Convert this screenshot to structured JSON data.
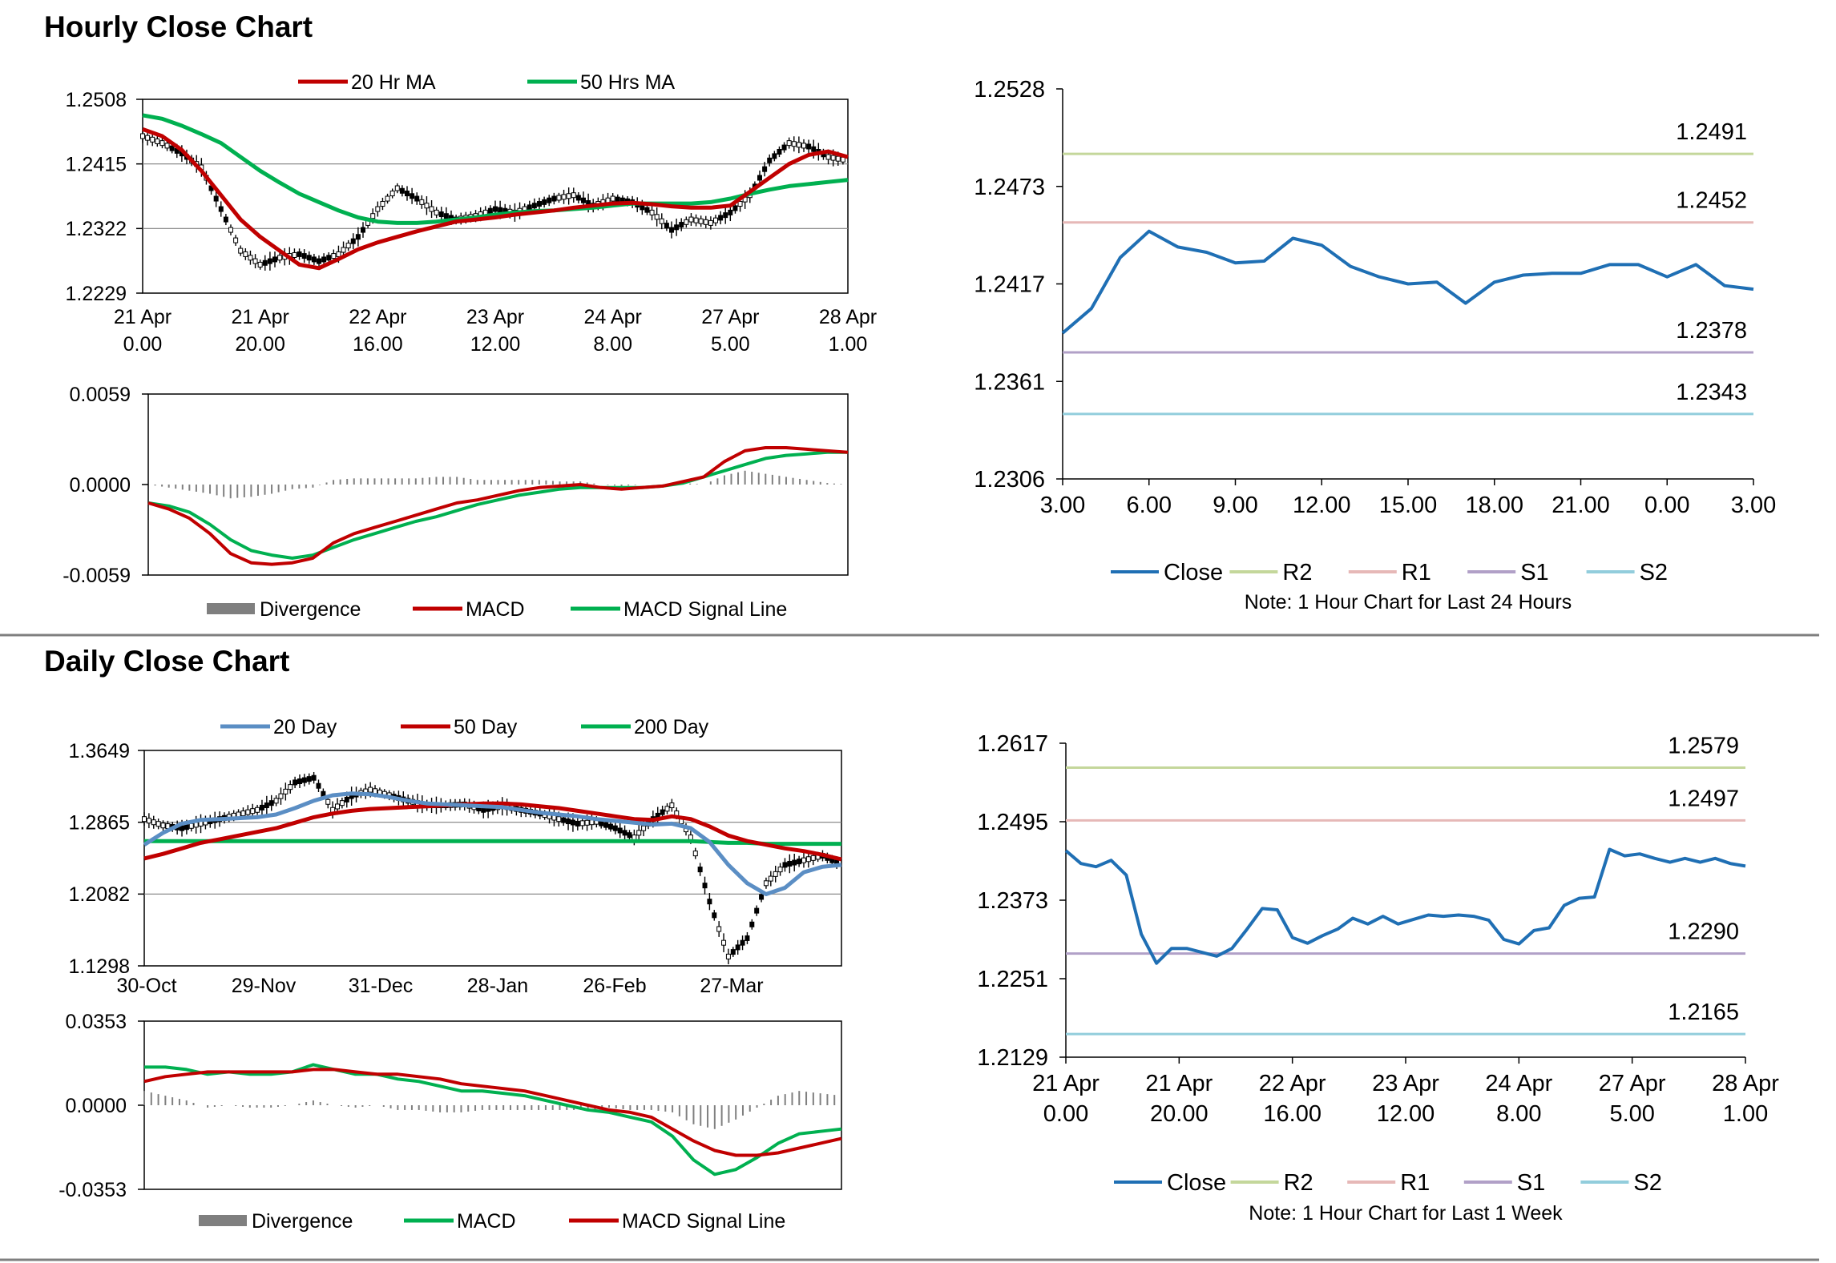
{
  "sections": {
    "hourly_title": "Hourly Close Chart",
    "daily_title": "Daily Close Chart"
  },
  "colors": {
    "ma20": "#c00000",
    "ma50": "#00b050",
    "close": "#1f6fb4",
    "r2": "#c4d79b",
    "r1": "#e6b8b7",
    "s1": "#b1a0c7",
    "s2": "#92cddc",
    "ma20day": "#5b8ec4",
    "divergence": "#7f7f7f"
  },
  "chart_data": [
    {
      "id": "hourly_price",
      "type": "line",
      "ylim": [
        1.2229,
        1.2508
      ],
      "y_ticks": [
        "1.2508",
        "1.2415",
        "1.2322",
        "1.2229"
      ],
      "x_ticks": [
        [
          "21 Apr",
          "0.00"
        ],
        [
          "21 Apr",
          "20.00"
        ],
        [
          "22 Apr",
          "16.00"
        ],
        [
          "23 Apr",
          "12.00"
        ],
        [
          "24 Apr",
          "8.00"
        ],
        [
          "27 Apr",
          "5.00"
        ],
        [
          "28 Apr",
          "1.00"
        ]
      ],
      "legend": [
        "20 Hr MA",
        "50 Hrs MA"
      ],
      "series": [
        {
          "name": "20 Hr MA",
          "values": [
            1.2465,
            1.2455,
            1.2435,
            1.2405,
            1.237,
            1.2335,
            1.231,
            1.229,
            1.227,
            1.2265,
            1.2278,
            1.2292,
            1.2302,
            1.231,
            1.2318,
            1.2325,
            1.2332,
            1.2335,
            1.2338,
            1.2342,
            1.2345,
            1.2348,
            1.2352,
            1.2355,
            1.2358,
            1.2359,
            1.2357,
            1.2354,
            1.2352,
            1.2352,
            1.2355,
            1.2375,
            1.2395,
            1.2415,
            1.2428,
            1.2433,
            1.2425
          ]
        },
        {
          "name": "50 Hrs MA",
          "values": [
            1.2485,
            1.248,
            1.247,
            1.2458,
            1.2445,
            1.2425,
            1.2405,
            1.2388,
            1.2372,
            1.236,
            1.2348,
            1.2338,
            1.2332,
            1.233,
            1.233,
            1.2332,
            1.2335,
            1.2338,
            1.2342,
            1.2345,
            1.2347,
            1.2348,
            1.235,
            1.2352,
            1.2355,
            1.2358,
            1.2358,
            1.2358,
            1.2358,
            1.236,
            1.2365,
            1.2372,
            1.2378,
            1.2383,
            1.2386,
            1.2389,
            1.2392
          ]
        },
        {
          "name": "Price",
          "values": [
            1.2455,
            1.2445,
            1.243,
            1.241,
            1.235,
            1.229,
            1.227,
            1.228,
            1.2285,
            1.2275,
            1.2285,
            1.231,
            1.235,
            1.238,
            1.2365,
            1.2345,
            1.2335,
            1.234,
            1.235,
            1.2345,
            1.2355,
            1.2365,
            1.237,
            1.2355,
            1.2365,
            1.236,
            1.2345,
            1.232,
            1.2335,
            1.233,
            1.2345,
            1.237,
            1.242,
            1.2445,
            1.244,
            1.2425,
            1.242
          ]
        }
      ]
    },
    {
      "id": "hourly_macd",
      "type": "line",
      "ylim": [
        -0.0059,
        0.0059
      ],
      "y_ticks": [
        "0.0059",
        "0.0000",
        "-0.0059"
      ],
      "legend": [
        "Divergence",
        "MACD",
        "MACD Signal Line"
      ],
      "series": [
        {
          "name": "MACD",
          "values": [
            -0.0012,
            -0.0016,
            -0.0022,
            -0.0032,
            -0.0045,
            -0.0051,
            -0.0052,
            -0.0051,
            -0.0048,
            -0.0038,
            -0.0032,
            -0.0028,
            -0.0024,
            -0.002,
            -0.0016,
            -0.0012,
            -0.001,
            -0.0007,
            -0.0004,
            -0.0002,
            -0.0001,
            0.0,
            -0.0002,
            -0.0003,
            -0.0002,
            -0.0001,
            0.0002,
            0.0005,
            0.0015,
            0.0022,
            0.0024,
            0.0024,
            0.0023,
            0.0022,
            0.0021
          ]
        },
        {
          "name": "MACD Signal Line",
          "values": [
            -0.0012,
            -0.0014,
            -0.0018,
            -0.0026,
            -0.0036,
            -0.0043,
            -0.0046,
            -0.0048,
            -0.0046,
            -0.0041,
            -0.0036,
            -0.0032,
            -0.0028,
            -0.0024,
            -0.0021,
            -0.0017,
            -0.0013,
            -0.001,
            -0.0007,
            -0.0005,
            -0.0003,
            -0.0002,
            -0.0002,
            -0.0002,
            -0.0002,
            -0.0001,
            0.0001,
            0.0005,
            0.0009,
            0.0013,
            0.0017,
            0.0019,
            0.002,
            0.0021,
            0.0021
          ]
        },
        {
          "name": "Divergence",
          "values": [
            0.0,
            -0.0002,
            -0.0004,
            -0.0006,
            -0.0009,
            -0.0008,
            -0.0006,
            -0.0003,
            -0.0002,
            0.0003,
            0.0004,
            0.0004,
            0.0004,
            0.0004,
            0.0005,
            0.0005,
            0.0003,
            0.0003,
            0.0003,
            0.0003,
            0.0002,
            0.0002,
            0.0,
            -0.0001,
            0.0,
            0.0,
            0.0001,
            0.0,
            0.0006,
            0.0009,
            0.0007,
            0.0005,
            0.0003,
            0.0001,
            0.0
          ]
        }
      ]
    },
    {
      "id": "hourly_24h",
      "type": "line",
      "ylim": [
        1.2306,
        1.2528
      ],
      "y_ticks": [
        "1.2528",
        "1.2473",
        "1.2417",
        "1.2361",
        "1.2306"
      ],
      "x_ticks": [
        "3.00",
        "6.00",
        "9.00",
        "12.00",
        "15.00",
        "18.00",
        "21.00",
        "0.00",
        "3.00"
      ],
      "legend": [
        "Close",
        "R2",
        "R1",
        "S1",
        "S2"
      ],
      "levels": {
        "R2": 1.2491,
        "R1": 1.2452,
        "S1": 1.2378,
        "S2": 1.2343
      },
      "level_labels": {
        "R2": "1.2491",
        "R1": "1.2452",
        "S1": "1.2378",
        "S2": "1.2343"
      },
      "close": [
        1.2389,
        1.2403,
        1.2432,
        1.2447,
        1.2438,
        1.2435,
        1.2429,
        1.243,
        1.2443,
        1.2439,
        1.2427,
        1.2421,
        1.2417,
        1.2418,
        1.2406,
        1.2418,
        1.2422,
        1.2423,
        1.2423,
        1.2428,
        1.2428,
        1.2421,
        1.2428,
        1.2416,
        1.2414
      ],
      "note": "Note: 1 Hour Chart for Last 24 Hours"
    },
    {
      "id": "daily_price",
      "type": "line",
      "ylim": [
        1.1298,
        1.3649
      ],
      "y_ticks": [
        "1.3649",
        "1.2865",
        "1.2082",
        "1.1298"
      ],
      "x_ticks": [
        "30-Oct",
        "29-Nov",
        "31-Dec",
        "28-Jan",
        "26-Feb",
        "27-Mar"
      ],
      "legend": [
        "20 Day",
        "50 Day",
        "200 Day"
      ],
      "series": [
        {
          "name": "20 Day",
          "values": [
            1.262,
            1.275,
            1.285,
            1.289,
            1.29,
            1.291,
            1.292,
            1.295,
            1.302,
            1.31,
            1.316,
            1.318,
            1.317,
            1.314,
            1.31,
            1.307,
            1.306,
            1.305,
            1.304,
            1.303,
            1.3,
            1.297,
            1.295,
            1.293,
            1.29,
            1.288,
            1.286,
            1.284,
            1.285,
            1.28,
            1.265,
            1.24,
            1.22,
            1.208,
            1.215,
            1.232,
            1.238,
            1.24
          ]
        },
        {
          "name": "50 Day",
          "values": [
            1.247,
            1.252,
            1.258,
            1.264,
            1.268,
            1.272,
            1.276,
            1.28,
            1.286,
            1.292,
            1.296,
            1.299,
            1.301,
            1.302,
            1.303,
            1.304,
            1.305,
            1.306,
            1.307,
            1.307,
            1.306,
            1.304,
            1.302,
            1.299,
            1.296,
            1.293,
            1.29,
            1.289,
            1.293,
            1.29,
            1.282,
            1.272,
            1.266,
            1.262,
            1.258,
            1.255,
            1.251,
            1.246
          ]
        },
        {
          "name": "200 Day",
          "values": [
            1.266,
            1.266,
            1.266,
            1.266,
            1.266,
            1.266,
            1.266,
            1.266,
            1.266,
            1.266,
            1.266,
            1.266,
            1.266,
            1.266,
            1.266,
            1.266,
            1.266,
            1.266,
            1.266,
            1.266,
            1.266,
            1.266,
            1.266,
            1.266,
            1.266,
            1.266,
            1.266,
            1.266,
            1.266,
            1.266,
            1.265,
            1.264,
            1.264,
            1.263,
            1.263,
            1.263,
            1.263,
            1.263
          ]
        },
        {
          "name": "Price",
          "values": [
            1.29,
            1.283,
            1.28,
            1.285,
            1.29,
            1.295,
            1.3,
            1.31,
            1.33,
            1.335,
            1.3,
            1.315,
            1.322,
            1.316,
            1.31,
            1.305,
            1.305,
            1.306,
            1.3,
            1.304,
            1.3,
            1.296,
            1.29,
            1.285,
            1.287,
            1.28,
            1.27,
            1.29,
            1.305,
            1.27,
            1.2,
            1.14,
            1.16,
            1.22,
            1.24,
            1.245,
            1.25,
            1.24
          ]
        }
      ]
    },
    {
      "id": "daily_macd",
      "type": "line",
      "ylim": [
        -0.0353,
        0.0353
      ],
      "y_ticks": [
        "0.0353",
        "0.0000",
        "-0.0353"
      ],
      "legend": [
        "Divergence",
        "MACD",
        "MACD Signal Line"
      ],
      "series": [
        {
          "name": "MACD",
          "values": [
            0.016,
            0.016,
            0.015,
            0.013,
            0.014,
            0.013,
            0.013,
            0.014,
            0.017,
            0.015,
            0.013,
            0.013,
            0.011,
            0.01,
            0.008,
            0.006,
            0.006,
            0.005,
            0.004,
            0.002,
            0.0,
            -0.002,
            -0.003,
            -0.005,
            -0.007,
            -0.013,
            -0.023,
            -0.029,
            -0.027,
            -0.022,
            -0.016,
            -0.012,
            -0.011,
            -0.01
          ]
        },
        {
          "name": "MACD Signal Line",
          "values": [
            0.01,
            0.012,
            0.013,
            0.014,
            0.014,
            0.014,
            0.014,
            0.014,
            0.015,
            0.015,
            0.014,
            0.013,
            0.013,
            0.012,
            0.011,
            0.009,
            0.008,
            0.007,
            0.006,
            0.004,
            0.002,
            0.0,
            -0.002,
            -0.003,
            -0.005,
            -0.01,
            -0.015,
            -0.019,
            -0.021,
            -0.021,
            -0.02,
            -0.018,
            -0.016,
            -0.014
          ]
        },
        {
          "name": "Divergence",
          "values": [
            0.006,
            0.004,
            0.002,
            -0.001,
            0.0,
            -0.001,
            -0.001,
            0.0,
            0.002,
            0.0,
            -0.001,
            0.0,
            -0.002,
            -0.002,
            -0.003,
            -0.003,
            -0.002,
            -0.002,
            -0.002,
            -0.002,
            -0.002,
            -0.002,
            -0.001,
            -0.002,
            -0.002,
            -0.003,
            -0.008,
            -0.01,
            -0.006,
            -0.001,
            0.004,
            0.006,
            0.005,
            0.004
          ]
        }
      ]
    },
    {
      "id": "hourly_week",
      "type": "line",
      "ylim": [
        1.2129,
        1.2617
      ],
      "y_ticks": [
        "1.2617",
        "1.2495",
        "1.2373",
        "1.2251",
        "1.2129"
      ],
      "x_ticks": [
        [
          "21 Apr",
          "0.00"
        ],
        [
          "21 Apr",
          "20.00"
        ],
        [
          "22 Apr",
          "16.00"
        ],
        [
          "23 Apr",
          "12.00"
        ],
        [
          "24 Apr",
          "8.00"
        ],
        [
          "27 Apr",
          "5.00"
        ],
        [
          "28 Apr",
          "1.00"
        ]
      ],
      "legend": [
        "Close",
        "R2",
        "R1",
        "S1",
        "S2"
      ],
      "levels": {
        "R2": 1.2579,
        "R1": 1.2497,
        "S1": 1.229,
        "S2": 1.2165
      },
      "level_labels": {
        "R2": "1.2579",
        "R1": "1.2497",
        "S1": "1.2290",
        "S2": "1.2165"
      },
      "close": [
        1.245,
        1.243,
        1.2425,
        1.2435,
        1.2412,
        1.232,
        1.2275,
        1.2298,
        1.2298,
        1.2292,
        1.2286,
        1.2298,
        1.2328,
        1.236,
        1.2358,
        1.2315,
        1.2306,
        1.2318,
        1.2328,
        1.2345,
        1.2336,
        1.2348,
        1.2336,
        1.2343,
        1.235,
        1.2348,
        1.235,
        1.2348,
        1.2342,
        1.2312,
        1.2305,
        1.2326,
        1.233,
        1.2365,
        1.2376,
        1.2378,
        1.2452,
        1.2442,
        1.2445,
        1.2438,
        1.2432,
        1.2438,
        1.2432,
        1.2438,
        1.243,
        1.2426
      ],
      "note": "Note: 1 Hour Chart for Last 1 Week"
    }
  ]
}
